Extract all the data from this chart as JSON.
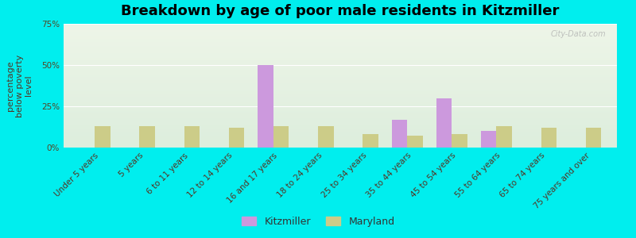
{
  "title": "Breakdown by age of poor male residents in Kitzmiller",
  "ylabel": "percentage\nbelow poverty\nlevel",
  "categories": [
    "Under 5 years",
    "5 years",
    "6 to 11 years",
    "12 to 14 years",
    "16 and 17 years",
    "18 to 24 years",
    "25 to 34 years",
    "35 to 44 years",
    "45 to 54 years",
    "55 to 64 years",
    "65 to 74 years",
    "75 years and over"
  ],
  "kitzmiller_values": [
    0,
    0,
    0,
    0,
    50,
    0,
    0,
    17,
    30,
    10,
    0,
    0
  ],
  "maryland_values": [
    13,
    13,
    13,
    12,
    13,
    13,
    8,
    7,
    8,
    13,
    12,
    12
  ],
  "kitzmiller_color": "#cc99dd",
  "maryland_color": "#cccc88",
  "outer_bg": "#00eeee",
  "plot_bg_top": "#ddeedd",
  "plot_bg_bottom": "#eef5e8",
  "ylim": [
    0,
    75
  ],
  "yticks": [
    0,
    25,
    50,
    75
  ],
  "ytick_labels": [
    "0%",
    "25%",
    "50%",
    "75%"
  ],
  "bar_width": 0.35,
  "title_fontsize": 13,
  "axis_label_fontsize": 8,
  "tick_fontsize": 7.5,
  "legend_fontsize": 9
}
